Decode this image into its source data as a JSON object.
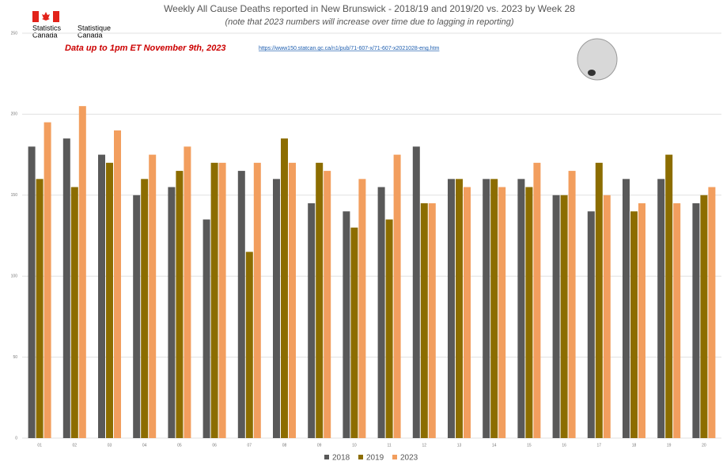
{
  "chart_data": {
    "type": "bar",
    "title": "Weekly All Cause Deaths reported in New Brunswick - 2018/19 and 2019/20 vs. 2023 by Week 28",
    "subtitle": "(note that 2023 numbers will increase over time due to lagging in reporting)",
    "logo": [
      "Statistics",
      "Canada",
      "Statistique",
      "Canada"
    ],
    "annotations": [
      "Data up to 1pm ET November 9th, 2023",
      "https://www150.statcan.gc.ca/n1/pub/71-607-x/71-607-x2021028-eng.htm"
    ],
    "categories": [
      "01",
      "02",
      "03",
      "04",
      "05",
      "06",
      "07",
      "08",
      "09",
      "10",
      "11",
      "12",
      "13",
      "14",
      "15",
      "16",
      "17",
      "18",
      "19",
      "20"
    ],
    "series": [
      {
        "name": "2018",
        "color": "#595959",
        "values": [
          180,
          185,
          175,
          150,
          155,
          135,
          165,
          160,
          145,
          140,
          155,
          180,
          160,
          160,
          160,
          150,
          140,
          160,
          160,
          145
        ]
      },
      {
        "name": "2019",
        "color": "#8c6d00",
        "values": [
          160,
          155,
          170,
          160,
          165,
          170,
          115,
          185,
          170,
          130,
          135,
          145,
          160,
          160,
          155,
          150,
          170,
          140,
          175,
          150
        ]
      },
      {
        "name": "2023",
        "color": "#f29e5e",
        "values": [
          195,
          205,
          190,
          175,
          180,
          170,
          170,
          170,
          165,
          160,
          175,
          145,
          155,
          155,
          170,
          165,
          150,
          145,
          145,
          155
        ]
      }
    ],
    "ylim": [
      0,
      250
    ],
    "yticks": [
      0,
      50,
      100,
      150,
      200,
      250
    ],
    "grid": true
  }
}
